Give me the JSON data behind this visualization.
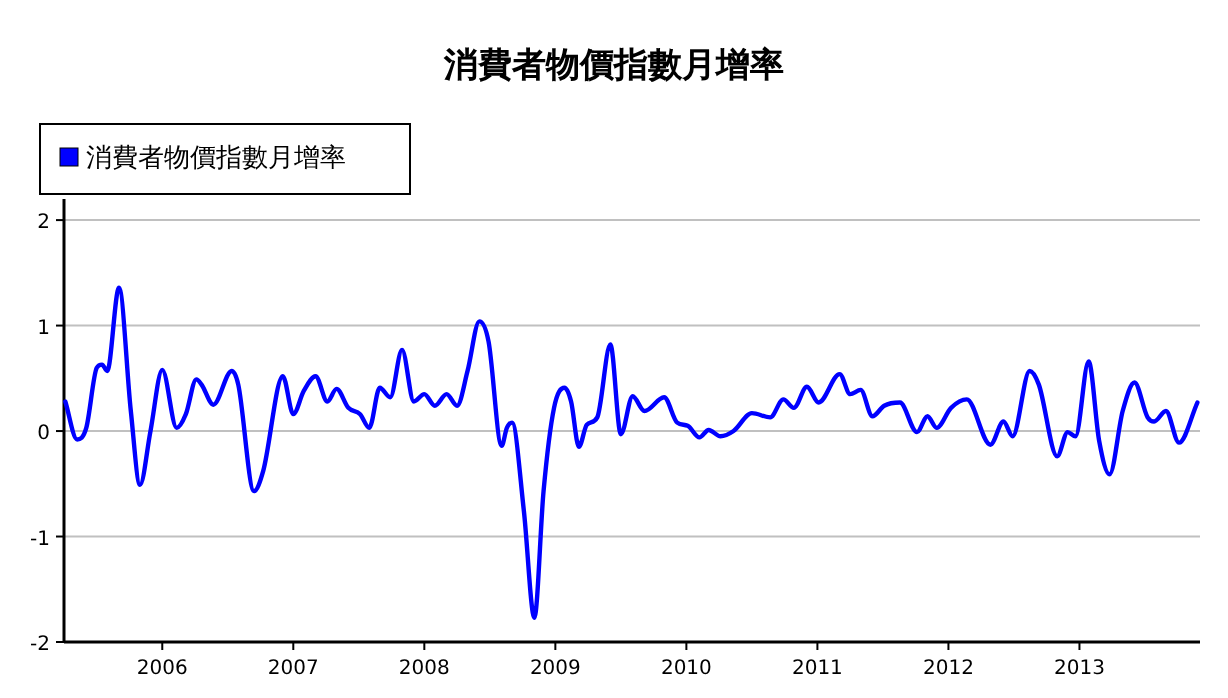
{
  "chart_data": {
    "type": "line",
    "title": "消費者物價指數月增率",
    "x": [
      2005.26,
      2005.35,
      2005.42,
      2005.5,
      2005.54,
      2005.58,
      2005.67,
      2005.76,
      2005.83,
      2005.91,
      2006.0,
      2006.11,
      2006.18,
      2006.26,
      2006.3,
      2006.39,
      2006.53,
      2006.58,
      2006.7,
      2006.77,
      2006.92,
      2007.0,
      2007.08,
      2007.17,
      2007.26,
      2007.33,
      2007.42,
      2007.51,
      2007.58,
      2007.66,
      2007.74,
      2007.83,
      2007.92,
      2008.0,
      2008.08,
      2008.17,
      2008.25,
      2008.33,
      2008.42,
      2008.49,
      2008.59,
      2008.63,
      2008.67,
      2008.76,
      2008.84,
      2008.91,
      2008.99,
      2009.07,
      2009.12,
      2009.18,
      2009.24,
      2009.32,
      2009.42,
      2009.5,
      2009.59,
      2009.68,
      2009.83,
      2009.93,
      2010.01,
      2010.1,
      2010.17,
      2010.26,
      2010.36,
      2010.5,
      2010.64,
      2010.74,
      2010.82,
      2010.92,
      2011.01,
      2011.17,
      2011.25,
      2011.33,
      2011.42,
      2011.51,
      2011.63,
      2011.76,
      2011.84,
      2011.91,
      2012.02,
      2012.14,
      2012.32,
      2012.42,
      2012.49,
      2012.62,
      2012.69,
      2012.83,
      2012.91,
      2012.97,
      2013.07,
      2013.15,
      2013.23,
      2013.33,
      2013.42,
      2013.52,
      2013.57,
      2013.66,
      2013.76,
      2013.9
    ],
    "series": [
      {
        "name": "消費者物價指數月增率",
        "color": "#0000ff",
        "values": [
          0.28,
          -0.08,
          0.03,
          0.6,
          0.63,
          0.57,
          1.36,
          0.19,
          -0.51,
          0,
          0.58,
          0.03,
          0.16,
          0.49,
          0.44,
          0.25,
          0.57,
          0.44,
          -0.57,
          -0.38,
          0.52,
          0.16,
          0.38,
          0.52,
          0.28,
          0.4,
          0.22,
          0.16,
          0.03,
          0.41,
          0.32,
          0.77,
          0.28,
          0.35,
          0.24,
          0.35,
          0.24,
          0.57,
          1.04,
          0.85,
          -0.14,
          0.03,
          0.08,
          -0.76,
          -1.77,
          -0.57,
          0.22,
          0.41,
          0.28,
          -0.15,
          0.06,
          0.13,
          0.82,
          -0.03,
          0.33,
          0.19,
          0.32,
          0.08,
          0.05,
          -0.06,
          0.01,
          -0.05,
          0,
          0.17,
          0.13,
          0.3,
          0.22,
          0.42,
          0.27,
          0.54,
          0.35,
          0.39,
          0.14,
          0.24,
          0.27,
          -0.01,
          0.14,
          0.03,
          0.22,
          0.3,
          -0.13,
          0.09,
          -0.05,
          0.57,
          0.44,
          -0.24,
          -0.01,
          -0.05,
          0.66,
          -0.09,
          -0.41,
          0.19,
          0.46,
          0.13,
          0.09,
          0.19,
          -0.11,
          0.27
        ]
      }
    ],
    "xlim": [
      2005.25,
      2013.92
    ],
    "xticks": [
      2006,
      2007,
      2008,
      2009,
      2010,
      2011,
      2012,
      2013
    ],
    "ylim": [
      -2,
      2.2
    ],
    "yticks": [
      -2,
      -1,
      0,
      1,
      2
    ],
    "grid": "y",
    "legend": "top left",
    "marker": "none",
    "line_style": "solid"
  }
}
